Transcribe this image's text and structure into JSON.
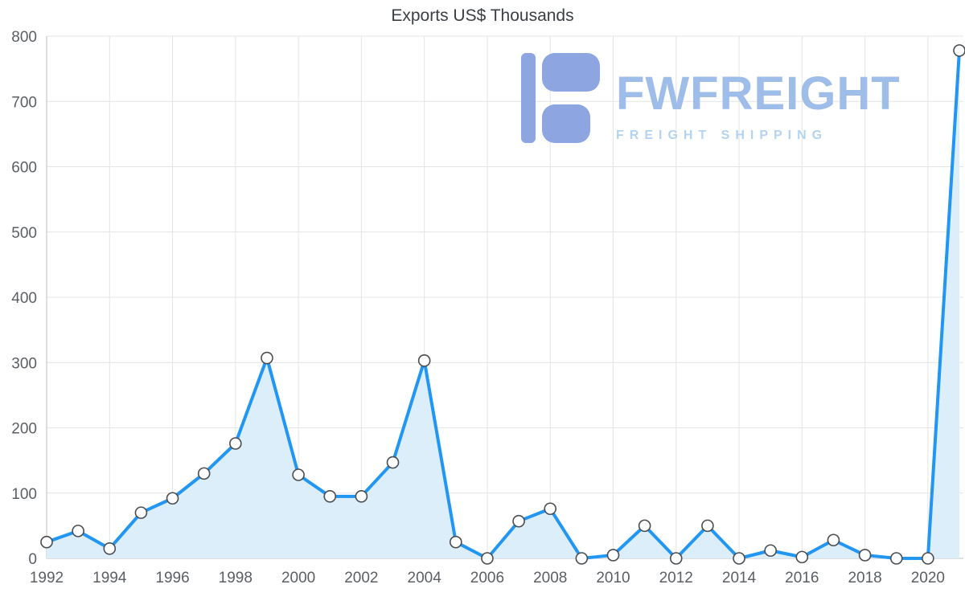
{
  "chart_data": {
    "type": "area",
    "title": "Exports US$ Thousands",
    "x": [
      1992,
      1993,
      1994,
      1995,
      1996,
      1997,
      1998,
      1999,
      2000,
      2001,
      2002,
      2003,
      2004,
      2005,
      2006,
      2007,
      2008,
      2009,
      2010,
      2011,
      2012,
      2013,
      2014,
      2015,
      2016,
      2017,
      2018,
      2019,
      2020,
      2021
    ],
    "values": [
      25,
      42,
      15,
      70,
      92,
      130,
      176,
      307,
      128,
      95,
      95,
      147,
      303,
      25,
      0,
      57,
      76,
      0,
      5,
      50,
      0,
      50,
      0,
      12,
      2,
      28,
      5,
      0,
      0,
      778
    ],
    "xticks": [
      1992,
      1994,
      1996,
      1998,
      2000,
      2002,
      2004,
      2006,
      2008,
      2010,
      2012,
      2014,
      2016,
      2018,
      2020
    ],
    "yticks": [
      0,
      100,
      200,
      300,
      400,
      500,
      600,
      700,
      800
    ],
    "xlim": [
      1992,
      2021
    ],
    "ylim": [
      0,
      800
    ],
    "grid": true,
    "legend": "none",
    "xlabel": "",
    "ylabel": "",
    "line_color": "#2196f3",
    "fill_color": "#ddeefb",
    "marker_fill": "#ffffff",
    "marker_stroke": "#4a4d50",
    "grid_color": "#e4e4e4",
    "axis_color": "#bcbcbc"
  },
  "watermark": {
    "brand": "FWFREIGHT",
    "tagline": "FREIGHT SHIPPING",
    "icon": "fwfreight-logo-icon",
    "brand_color": "#9fbde9",
    "tagline_color": "#b4d3f1",
    "icon_color": "#8da5e0"
  }
}
